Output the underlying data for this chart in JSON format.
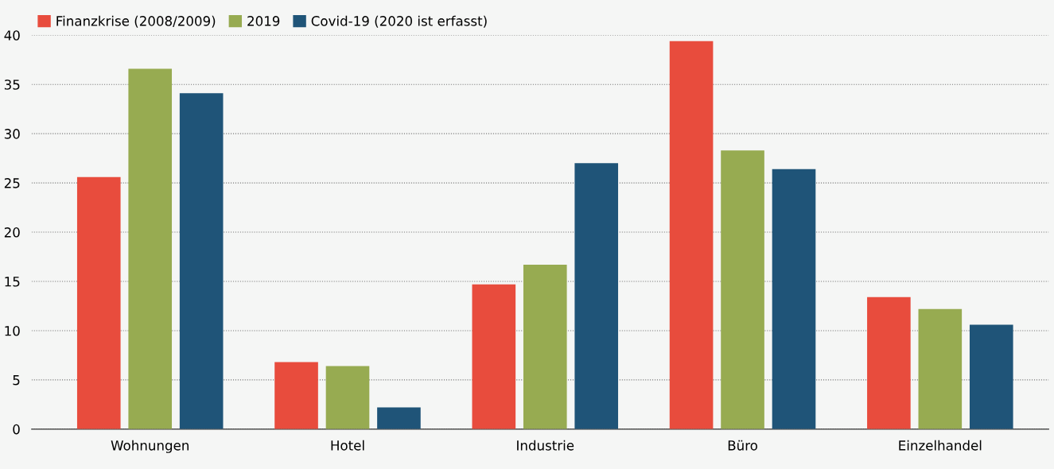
{
  "chart_data": {
    "type": "bar",
    "categories": [
      "Wohnungen",
      "Hotel",
      "Industrie",
      "Büro",
      "Einzelhandel"
    ],
    "series": [
      {
        "name": "Finanzkrise (2008/2009)",
        "color": "#e84c3d",
        "values": [
          25.6,
          6.8,
          14.7,
          39.4,
          13.4
        ]
      },
      {
        "name": "2019",
        "color": "#97ab51",
        "values": [
          36.6,
          6.4,
          16.7,
          28.3,
          12.2
        ]
      },
      {
        "name": "Covid-19 (2020 ist erfasst)",
        "color": "#1f5478",
        "values": [
          34.1,
          2.2,
          27.0,
          26.4,
          10.6
        ]
      }
    ],
    "ylim": [
      0,
      40
    ],
    "yticks": [
      0,
      5,
      10,
      15,
      20,
      25,
      30,
      35,
      40
    ],
    "grid": "y",
    "legend": "top left"
  }
}
